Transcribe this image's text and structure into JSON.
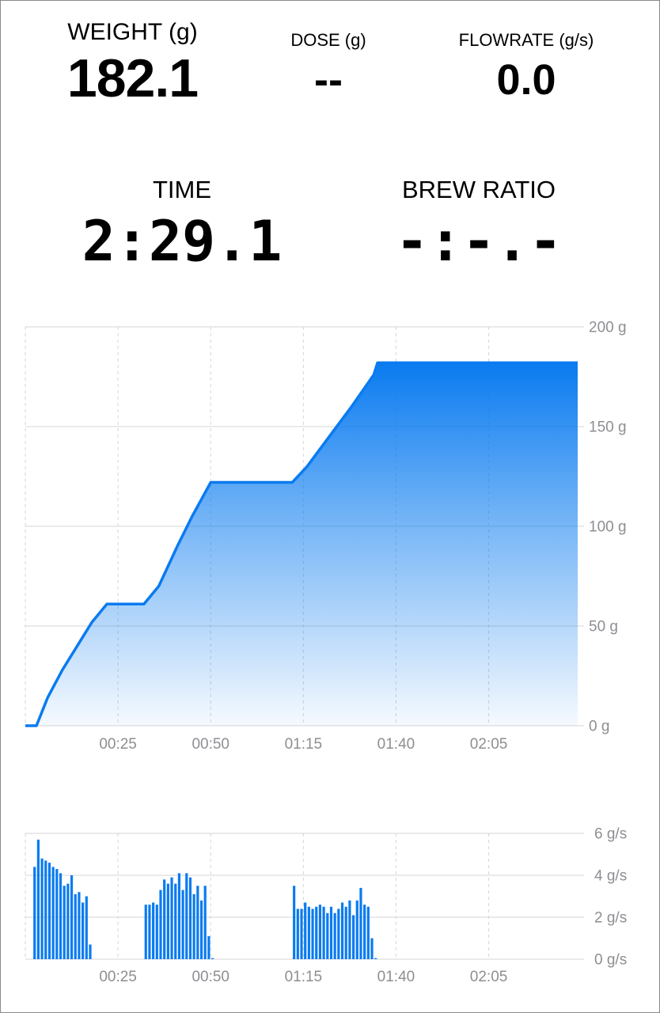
{
  "metrics": {
    "weight": {
      "label": "WEIGHT (g)",
      "value": "182.1"
    },
    "dose": {
      "label": "DOSE (g)",
      "value": "--"
    },
    "flowrate": {
      "label": "FLOWRATE (g/s)",
      "value": "0.0"
    },
    "time": {
      "label": "TIME",
      "value": "2:29.1"
    },
    "brew_ratio": {
      "label": "BREW RATIO",
      "value": "-:-.-"
    }
  },
  "colors": {
    "accent": "#0a7bf0",
    "grid": "#d6d6d6",
    "tick_text": "#8e8e93"
  },
  "chart_data": [
    {
      "type": "area",
      "series": [
        {
          "x": [
            0,
            3,
            6,
            10,
            14,
            18,
            22,
            32,
            36,
            41,
            45,
            50,
            72,
            76,
            82,
            88,
            94,
            95,
            149
          ],
          "y": [
            0,
            0,
            14,
            28,
            40,
            52,
            61,
            61,
            70,
            90,
            105,
            122,
            122,
            130,
            145,
            160,
            176,
            182,
            182
          ]
        }
      ],
      "x_ticks": [
        "00:25",
        "00:50",
        "01:15",
        "01:40",
        "02:05"
      ],
      "x_tick_values": [
        25,
        50,
        75,
        100,
        125
      ],
      "y_ticks": [
        "200 g",
        "150 g",
        "100 g",
        "50 g",
        "0 g"
      ],
      "y_tick_values": [
        200,
        150,
        100,
        50,
        0
      ],
      "xlim": [
        0,
        149
      ],
      "ylim": [
        0,
        200
      ],
      "grid": true,
      "x_unit": "seconds"
    },
    {
      "type": "bar",
      "series": [
        {
          "x": [
            2.5,
            3.5,
            4.5,
            5.5,
            6.5,
            7.5,
            8.5,
            9.5,
            10.5,
            11.5,
            12.5,
            13.5,
            14.5,
            15.5,
            16.5,
            17.5,
            32.5,
            33.5,
            34.5,
            35.5,
            36.5,
            37.5,
            38.5,
            39.5,
            40.5,
            41.5,
            42.5,
            43.5,
            44.5,
            45.5,
            46.5,
            47.5,
            48.5,
            49.5,
            50.5,
            72.5,
            73.5,
            74.5,
            75.5,
            76.5,
            77.5,
            78.5,
            79.5,
            80.5,
            81.5,
            82.5,
            83.5,
            84.5,
            85.5,
            86.5,
            87.5,
            88.5,
            89.5,
            90.5,
            91.5,
            92.5,
            93.5,
            94.5
          ],
          "y": [
            4.4,
            5.7,
            4.8,
            4.7,
            4.6,
            4.4,
            4.3,
            4.1,
            3.5,
            3.6,
            4.0,
            3.1,
            3.2,
            2.7,
            3.0,
            0.7,
            2.6,
            2.6,
            2.7,
            2.6,
            3.3,
            3.8,
            3.6,
            3.9,
            3.6,
            4.1,
            3.3,
            4.1,
            3.9,
            3.1,
            3.5,
            2.8,
            3.5,
            1.1,
            0.05,
            3.5,
            2.4,
            2.4,
            2.7,
            2.5,
            2.4,
            2.5,
            2.6,
            2.5,
            2.2,
            2.5,
            2.2,
            2.4,
            2.7,
            2.5,
            2.8,
            2.1,
            2.8,
            3.4,
            2.6,
            2.5,
            1.0,
            0.05
          ]
        }
      ],
      "x_ticks": [
        "00:25",
        "00:50",
        "01:15",
        "01:40",
        "02:05"
      ],
      "x_tick_values": [
        25,
        50,
        75,
        100,
        125
      ],
      "y_ticks": [
        "6 g/s",
        "4 g/s",
        "2 g/s",
        "0 g/s"
      ],
      "y_tick_values": [
        6,
        4,
        2,
        0
      ],
      "xlim": [
        0,
        149
      ],
      "ylim": [
        0,
        6
      ],
      "grid": true,
      "x_unit": "seconds"
    }
  ]
}
